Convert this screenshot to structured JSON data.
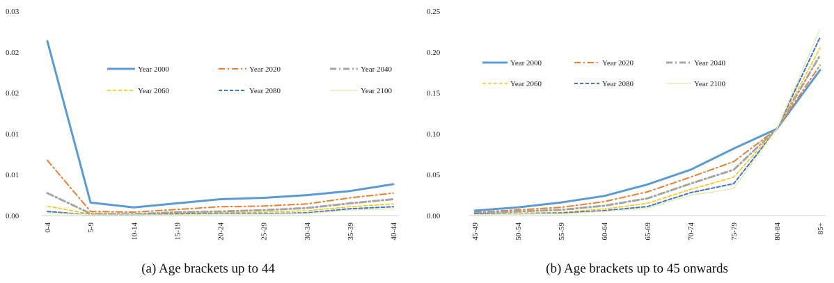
{
  "chart_data": [
    {
      "type": "line",
      "caption": "(a) Age brackets up to 44",
      "categories": [
        "0-4",
        "5-9",
        "10-14",
        "15-19",
        "20-24",
        "25-29",
        "30-34",
        "35-39",
        "40-44"
      ],
      "ytick_labels": [
        "0.00",
        "0.01",
        "0.01",
        "0.02",
        "0.02",
        "0.03"
      ],
      "ylim": [
        0,
        0.03
      ],
      "grid": false,
      "legend_position": "top-right",
      "series": [
        {
          "name": "Year 2000",
          "color": "#5b9bd5",
          "style": "solid",
          "width": 3,
          "values": [
            0.0256,
            0.0019,
            0.0012,
            0.0018,
            0.0024,
            0.0026,
            0.003,
            0.0036,
            0.0046
          ]
        },
        {
          "name": "Year 2020",
          "color": "#ed7d31",
          "style": "dashdot",
          "width": 2,
          "values": [
            0.0081,
            0.0006,
            0.0005,
            0.0009,
            0.0013,
            0.0014,
            0.0017,
            0.0026,
            0.0033
          ]
        },
        {
          "name": "Year 2040",
          "color": "#a5a5a5",
          "style": "dashdot",
          "width": 3,
          "values": [
            0.0033,
            0.0003,
            0.0002,
            0.0005,
            0.0006,
            0.0008,
            0.0011,
            0.0018,
            0.0024
          ]
        },
        {
          "name": "Year 2060",
          "color": "#ffc000",
          "style": "dashed",
          "width": 1.5,
          "values": [
            0.0014,
            0.0002,
            0.0001,
            0.0003,
            0.0004,
            0.0005,
            0.0007,
            0.0013,
            0.0017
          ]
        },
        {
          "name": "Year 2080",
          "color": "#4472c4",
          "style": "dashed",
          "width": 2,
          "values": [
            0.0006,
            0.0001,
            0.0001,
            0.0002,
            0.0003,
            0.0003,
            0.0004,
            0.001,
            0.0013
          ]
        },
        {
          "name": "Year 2100",
          "color": "#e2edb8",
          "style": "solid",
          "width": 1.5,
          "values": [
            0.0004,
            0.0001,
            0.0001,
            0.0001,
            0.0002,
            0.0002,
            0.0003,
            0.0008,
            0.001
          ]
        }
      ]
    },
    {
      "type": "line",
      "caption": "(b) Age brackets up to 45 onwards",
      "categories": [
        "45-49",
        "50-54",
        "55-59",
        "60-64",
        "65-69",
        "70-74",
        "75-79",
        "80-84",
        "85+"
      ],
      "ytick_labels": [
        "0.00",
        "0.05",
        "0.10",
        "0.15",
        "0.20",
        "0.25"
      ],
      "ylim": [
        0,
        0.25
      ],
      "grid": false,
      "legend_position": "top",
      "series": [
        {
          "name": "Year 2000",
          "color": "#5b9bd5",
          "style": "solid",
          "width": 3,
          "values": [
            0.006,
            0.01,
            0.016,
            0.024,
            0.038,
            0.056,
            0.082,
            0.106,
            0.178
          ]
        },
        {
          "name": "Year 2020",
          "color": "#ed7d31",
          "style": "dashdot",
          "width": 2,
          "values": [
            0.004,
            0.007,
            0.01,
            0.017,
            0.029,
            0.047,
            0.066,
            0.106,
            0.184
          ]
        },
        {
          "name": "Year 2040",
          "color": "#a5a5a5",
          "style": "dashdot",
          "width": 3,
          "values": [
            0.003,
            0.005,
            0.007,
            0.012,
            0.021,
            0.039,
            0.056,
            0.106,
            0.196
          ]
        },
        {
          "name": "Year 2060",
          "color": "#ffc000",
          "style": "dashed",
          "width": 1.5,
          "values": [
            0.002,
            0.003,
            0.004,
            0.008,
            0.015,
            0.032,
            0.047,
            0.106,
            0.205
          ]
        },
        {
          "name": "Year 2080",
          "color": "#4472c4",
          "style": "dashed",
          "width": 2,
          "values": [
            0.002,
            0.002,
            0.003,
            0.006,
            0.011,
            0.028,
            0.039,
            0.106,
            0.218
          ]
        },
        {
          "name": "Year 2100",
          "color": "#e2edb8",
          "style": "solid",
          "width": 1.5,
          "values": [
            0.001,
            0.002,
            0.002,
            0.005,
            0.009,
            0.025,
            0.033,
            0.106,
            0.228
          ]
        }
      ]
    }
  ]
}
